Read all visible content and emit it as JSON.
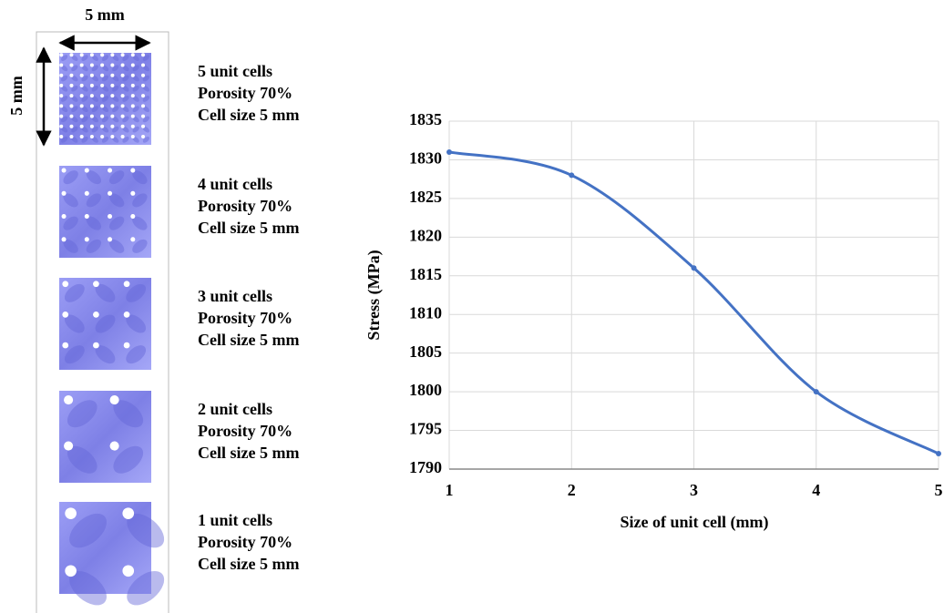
{
  "panel": {
    "width_label": "5 mm",
    "height_label": "5 mm",
    "items": [
      {
        "lines": [
          "5 unit cells",
          "Porosity 70%",
          "Cell size 5 mm"
        ]
      },
      {
        "lines": [
          "4 unit cells",
          "Porosity 70%",
          "Cell size 5 mm"
        ]
      },
      {
        "lines": [
          "3 unit cells",
          "Porosity 70%",
          "Cell size 5 mm"
        ]
      },
      {
        "lines": [
          "2 unit cells",
          "Porosity 70%",
          "Cell size 5 mm"
        ]
      },
      {
        "lines": [
          "1 unit cells",
          "Porosity 70%",
          "Cell size 5 mm"
        ]
      }
    ]
  },
  "chart_data": {
    "type": "line",
    "x_label": "Size of unit cell (mm)",
    "y_label": "Stress (MPa)",
    "x": [
      1,
      2,
      3,
      4,
      5
    ],
    "values": [
      1831,
      1828,
      1816,
      1800,
      1792
    ],
    "color": "#4472c4",
    "xlim": [
      1,
      5
    ],
    "xticks": [
      1,
      2,
      3,
      4,
      5
    ],
    "ylim": [
      1790,
      1835
    ],
    "yticks": [
      1790,
      1795,
      1800,
      1805,
      1810,
      1815,
      1820,
      1825,
      1830,
      1835
    ],
    "grid": true
  }
}
